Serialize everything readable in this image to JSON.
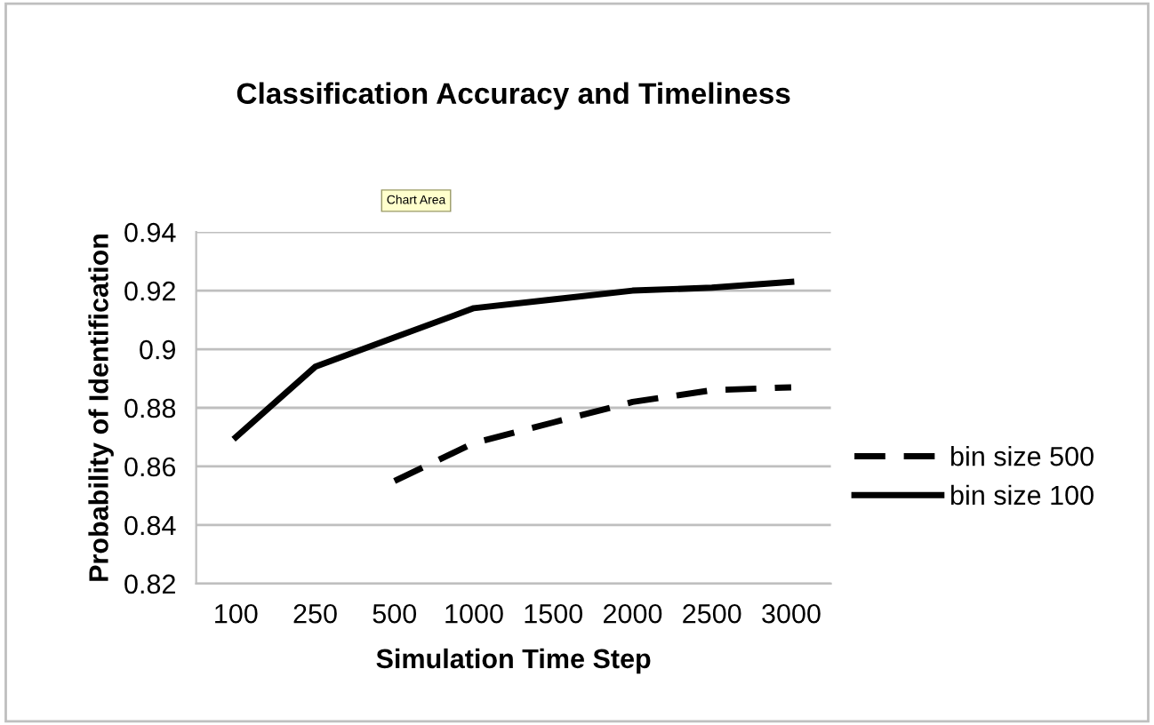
{
  "chart_data": {
    "type": "line",
    "title": "Classification Accuracy and Timeliness",
    "xlabel": "Simulation Time Step",
    "ylabel": "Probability of Identification",
    "categories": [
      "100",
      "250",
      "500",
      "1000",
      "1500",
      "2000",
      "2500",
      "3000"
    ],
    "series": [
      {
        "name": "bin size 500",
        "color": "#000000",
        "line_style": "dashed",
        "values": [
          null,
          null,
          0.855,
          0.868,
          0.875,
          0.882,
          0.886,
          0.887
        ]
      },
      {
        "name": "bin size 100",
        "color": "#000000",
        "line_style": "solid",
        "values": [
          0.87,
          0.894,
          0.904,
          0.914,
          0.917,
          0.92,
          0.921,
          0.923
        ]
      }
    ],
    "ylim": [
      0.82,
      0.94
    ],
    "yticks": [
      0.82,
      0.84,
      0.86,
      0.88,
      0.9,
      0.92,
      0.94
    ],
    "grid": "y",
    "legend": "right",
    "marker": "none",
    "annotations": [
      "Chart Area"
    ]
  }
}
